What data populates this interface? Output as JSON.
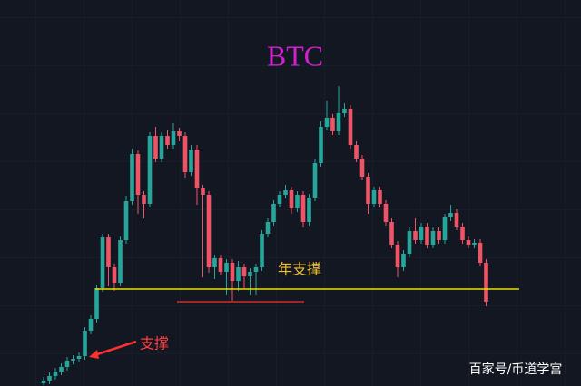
{
  "chart_data": {
    "type": "candlestick",
    "title": "BTC",
    "ylim": [
      0,
      426
    ],
    "up_color": "#26a69a",
    "down_color": "#ef5366",
    "open": [
      3,
      6,
      11,
      16,
      21,
      28,
      30,
      33,
      61,
      74,
      108,
      164,
      131,
      114,
      161,
      204,
      256,
      211,
      201,
      276,
      251,
      276,
      266,
      281,
      276,
      236,
      261,
      218,
      211,
      131,
      141,
      126,
      136,
      116,
      131,
      121,
      126,
      131,
      168,
      181,
      201,
      211,
      216,
      196,
      211,
      181,
      208,
      246,
      286,
      296,
      281,
      301,
      306,
      266,
      251,
      231,
      201,
      216,
      201,
      181,
      156,
      131,
      146,
      171,
      161,
      176,
      156,
      171,
      161,
      186,
      191,
      176,
      161,
      156,
      158,
      136
    ],
    "high": [
      10,
      15,
      20,
      25,
      32,
      34,
      37,
      65,
      78,
      112,
      168,
      168,
      135,
      165,
      210,
      262,
      260,
      215,
      280,
      286,
      280,
      282,
      290,
      285,
      280,
      266,
      266,
      222,
      215,
      145,
      145,
      140,
      140,
      138,
      135,
      130,
      135,
      172,
      185,
      205,
      215,
      222,
      220,
      215,
      215,
      212,
      250,
      292,
      315,
      300,
      331,
      312,
      310,
      270,
      255,
      235,
      220,
      220,
      205,
      185,
      160,
      150,
      175,
      185,
      180,
      180,
      175,
      175,
      190,
      200,
      195,
      180,
      165,
      162,
      162,
      140
    ],
    "low": [
      1,
      2,
      7,
      12,
      17,
      24,
      26,
      29,
      57,
      70,
      104,
      110,
      105,
      110,
      157,
      200,
      190,
      185,
      197,
      247,
      247,
      262,
      262,
      270,
      230,
      232,
      200,
      120,
      125,
      118,
      122,
      100,
      94,
      105,
      108,
      100,
      100,
      127,
      164,
      177,
      197,
      207,
      190,
      192,
      175,
      177,
      204,
      242,
      282,
      277,
      277,
      297,
      262,
      247,
      227,
      190,
      197,
      197,
      177,
      152,
      120,
      127,
      142,
      157,
      157,
      152,
      152,
      157,
      157,
      182,
      172,
      157,
      152,
      152,
      132,
      88
    ],
    "close": [
      6,
      11,
      16,
      21,
      28,
      30,
      33,
      61,
      74,
      108,
      164,
      131,
      114,
      161,
      204,
      256,
      211,
      201,
      276,
      251,
      276,
      266,
      281,
      276,
      236,
      261,
      218,
      211,
      131,
      141,
      126,
      136,
      116,
      131,
      121,
      126,
      131,
      168,
      181,
      201,
      211,
      216,
      196,
      211,
      181,
      208,
      246,
      286,
      296,
      281,
      301,
      306,
      266,
      251,
      231,
      201,
      216,
      201,
      181,
      156,
      131,
      146,
      171,
      161,
      176,
      156,
      171,
      161,
      186,
      191,
      176,
      161,
      156,
      158,
      136,
      93
    ],
    "lines": [
      {
        "value": 107,
        "color": "#e8e000"
      },
      {
        "value": 93,
        "color": "#d42a2a"
      }
    ],
    "annotations": [
      "年支撑",
      "支撑"
    ],
    "watermark": "百家号/币道学宫"
  }
}
